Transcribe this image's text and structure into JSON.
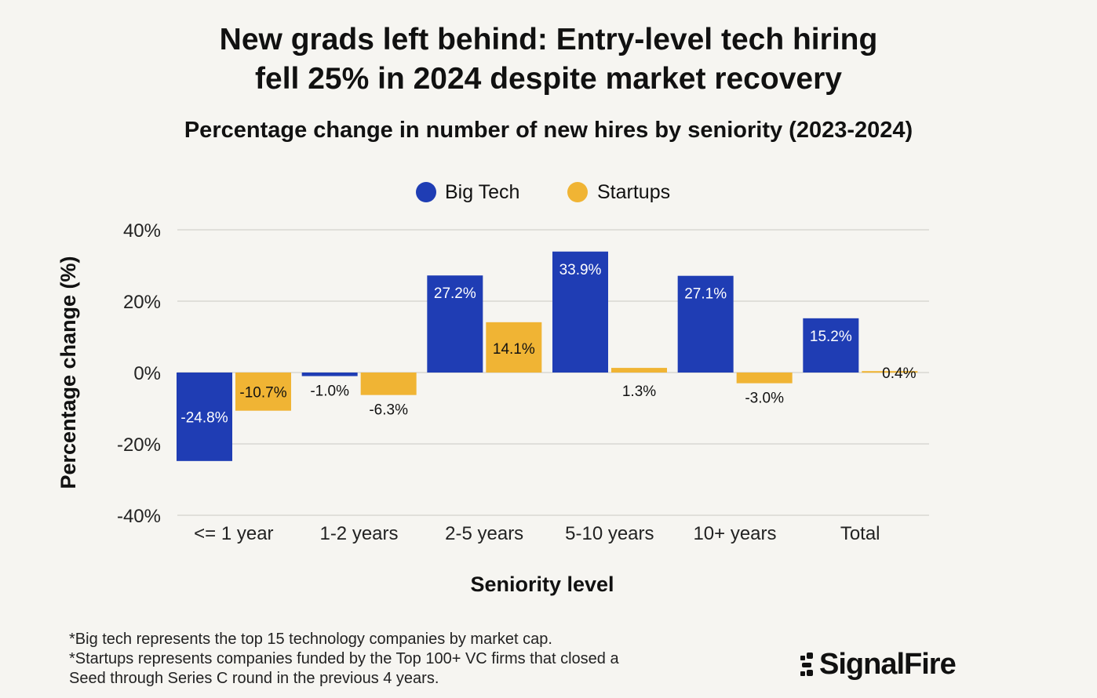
{
  "chart_data": {
    "type": "bar",
    "title": "New grads left behind: Entry-level tech hiring fell 25% in 2024 despite market recovery",
    "title_lines": [
      "New grads left behind: Entry-level tech hiring",
      "fell 25% in 2024 despite market recovery"
    ],
    "subtitle": "Percentage change in number of new hires by seniority (2023-2024)",
    "xlabel": "Seniority level",
    "ylabel": "Percentage change (%)",
    "ylim": [
      -40,
      40
    ],
    "yticks": [
      40,
      20,
      0,
      -20,
      -40
    ],
    "ytick_labels": [
      "40%",
      "20%",
      "0%",
      "-20%",
      "-40%"
    ],
    "categories": [
      "<= 1 year",
      "1-2 years",
      "2-5 years",
      "5-10 years",
      "10+ years",
      "Total"
    ],
    "series": [
      {
        "name": "Big Tech",
        "color": "#1f3db4",
        "values": [
          -24.8,
          -1.0,
          27.2,
          33.9,
          27.1,
          15.2
        ],
        "labels": [
          "-24.8%",
          "-1.0%",
          "27.2%",
          "33.9%",
          "27.1%",
          "15.2%"
        ]
      },
      {
        "name": "Startups",
        "color": "#f0b434",
        "values": [
          -10.7,
          -6.3,
          14.1,
          1.3,
          -3.0,
          0.4
        ],
        "labels": [
          "-10.7%",
          "-6.3%",
          "14.1%",
          "1.3%",
          "-3.0%",
          "0.4%"
        ]
      }
    ],
    "grid": true,
    "legend_position": "top-center"
  },
  "footnotes": [
    "*Big tech represents the top 15 technology companies by market cap.",
    "*Startups represents companies funded by the Top 100+ VC firms that closed a",
    "Seed through Series C round in the previous 4 years."
  ],
  "logo": {
    "text": "SignalFire"
  }
}
